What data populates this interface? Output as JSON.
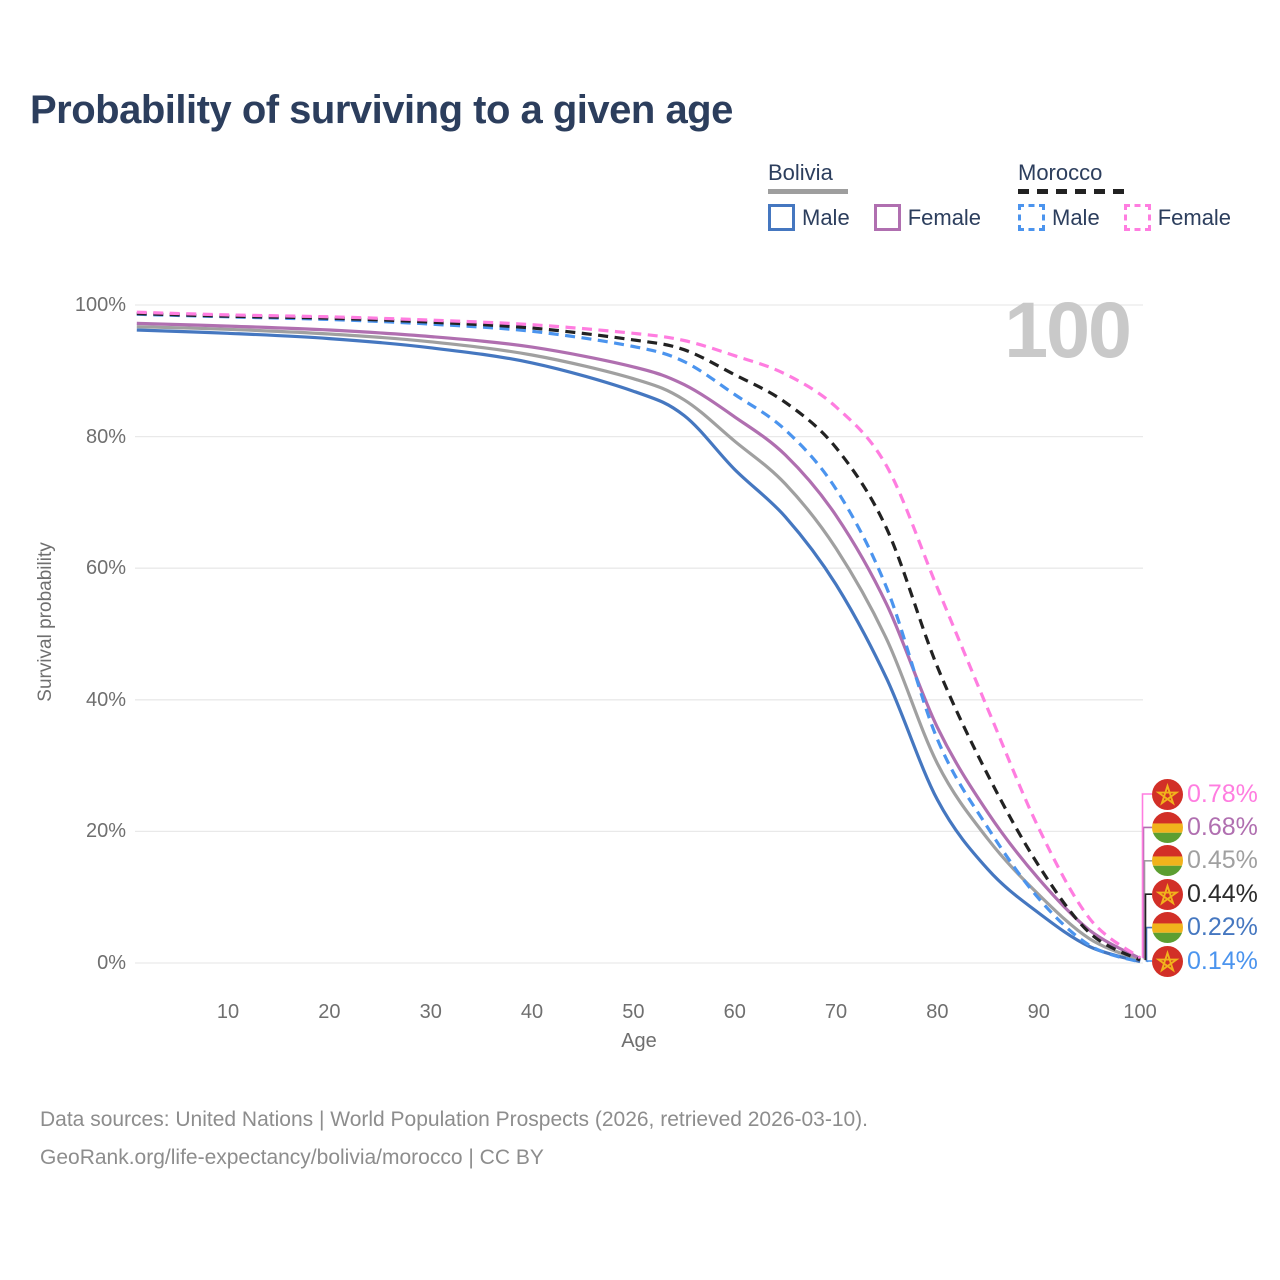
{
  "title": "Probability of surviving to a given age",
  "watermark": "100",
  "legend": {
    "groups": [
      {
        "country": "Bolivia",
        "line_style": "solid",
        "underline_color": "#9e9e9e",
        "underline_width": 80,
        "items": [
          {
            "label": "Male",
            "color": "#4577c0"
          },
          {
            "label": "Female",
            "color": "#b06fb0"
          }
        ]
      },
      {
        "country": "Morocco",
        "line_style": "dashed",
        "underline_color": "#222222",
        "underline_width": 106,
        "items": [
          {
            "label": "Male",
            "color": "#4b94ee"
          },
          {
            "label": "Female",
            "color": "#ff7de0"
          }
        ]
      }
    ]
  },
  "chart_data": {
    "type": "line",
    "title": "Probability of surviving to a given age",
    "xlabel": "Age",
    "ylabel": "Survival probability",
    "xlim": [
      0,
      100
    ],
    "ylim": [
      0,
      100
    ],
    "grid": "horizontal-only",
    "gridline_color": "#e9e9e9",
    "x_ticks": [
      10,
      20,
      30,
      40,
      50,
      60,
      70,
      80,
      90,
      100
    ],
    "y_ticks": [
      {
        "label": "0%",
        "value": 0
      },
      {
        "label": "20%",
        "value": 20
      },
      {
        "label": "40%",
        "value": 40
      },
      {
        "label": "60%",
        "value": 60
      },
      {
        "label": "80%",
        "value": 80
      },
      {
        "label": "100%",
        "value": 100
      }
    ],
    "x": [
      1,
      10,
      20,
      30,
      40,
      50,
      55,
      60,
      65,
      70,
      75,
      80,
      85,
      90,
      95,
      100
    ],
    "series": [
      {
        "name": "Bolivia Male",
        "country": "bolivia",
        "sex": "male",
        "color": "#4577c0",
        "dash": false,
        "end_label": "0.22%",
        "label_row": 4,
        "values": [
          96.2,
          95.7,
          94.9,
          93.5,
          91.2,
          86.9,
          83.2,
          75.0,
          67.8,
          57.5,
          43.2,
          24.8,
          14.2,
          7.6,
          2.5,
          0.22
        ]
      },
      {
        "name": "Bolivia Total",
        "country": "bolivia",
        "sex": "both",
        "color": "#a0a0a0",
        "dash": false,
        "end_label": "0.45%",
        "label_row": 2,
        "values": [
          96.7,
          96.3,
          95.6,
          94.4,
          92.4,
          88.8,
          85.6,
          79.3,
          72.8,
          63.0,
          49.2,
          30.3,
          18.8,
          10.4,
          3.7,
          0.45
        ]
      },
      {
        "name": "Bolivia Female",
        "country": "bolivia",
        "sex": "female",
        "color": "#b06fb0",
        "dash": false,
        "end_label": "0.68%",
        "label_row": 1,
        "values": [
          97.2,
          96.8,
          96.2,
          95.2,
          93.6,
          90.6,
          87.9,
          83.0,
          77.2,
          68.0,
          54.5,
          35.8,
          22.8,
          12.8,
          5.0,
          0.68
        ]
      },
      {
        "name": "Morocco Male",
        "country": "morocco",
        "sex": "male",
        "color": "#4b94ee",
        "dash": true,
        "end_label": "0.14%",
        "label_row": 5,
        "values": [
          98.6,
          98.2,
          97.8,
          97.1,
          96.0,
          93.7,
          91.4,
          86.4,
          81.0,
          72.0,
          57.0,
          34.0,
          20.5,
          9.8,
          2.7,
          0.14
        ]
      },
      {
        "name": "Morocco Total",
        "country": "morocco",
        "sex": "both",
        "color": "#222222",
        "dash": true,
        "end_label": "0.44%",
        "label_row": 3,
        "values": [
          98.7,
          98.3,
          98.0,
          97.4,
          96.5,
          94.7,
          93.2,
          89.4,
          85.2,
          78.3,
          66.0,
          45.0,
          28.5,
          14.8,
          4.6,
          0.44
        ]
      },
      {
        "name": "Morocco Female",
        "country": "morocco",
        "sex": "female",
        "color": "#ff7de0",
        "dash": true,
        "end_label": "0.78%",
        "label_row": 0,
        "values": [
          98.9,
          98.5,
          98.2,
          97.7,
          97.0,
          95.7,
          94.6,
          92.3,
          89.5,
          84.5,
          75.5,
          57.0,
          38.5,
          20.5,
          6.8,
          0.78
        ]
      }
    ]
  },
  "flags": {
    "bolivia": {
      "type": "stripes",
      "colors": [
        "#d22f27",
        "#f1b31c",
        "#5c9e31"
      ],
      "stops": [
        0.37,
        0.67
      ]
    },
    "morocco": {
      "type": "star",
      "bg": "#d22f27",
      "star": "#f1b31c"
    }
  },
  "footer": {
    "line1": "Data sources: United Nations | World Population Prospects (2026, retrieved 2026-03-10).",
    "line2": "GeoRank.org/life-expectancy/bolivia/morocco | CC BY"
  }
}
